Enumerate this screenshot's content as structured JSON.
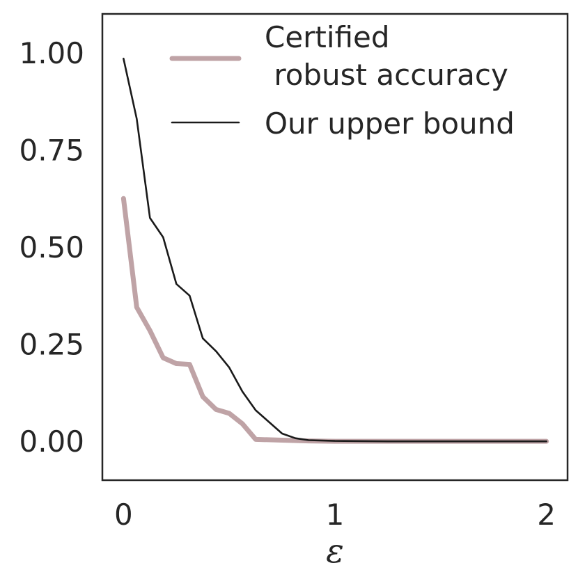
{
  "chart_data": {
    "type": "line",
    "xlabel": "ε",
    "ylabel": "",
    "xlim": [
      -0.1,
      2.1
    ],
    "ylim": [
      -0.1,
      1.1
    ],
    "x_ticks": [
      0,
      1,
      2
    ],
    "x_tick_labels": [
      "0",
      "1",
      "2"
    ],
    "y_ticks": [
      0.0,
      0.25,
      0.5,
      0.75,
      1.0
    ],
    "y_tick_labels": [
      "0.00",
      "0.25",
      "0.50",
      "0.75",
      "1.00"
    ],
    "grid": false,
    "legend_position": "top-right",
    "series": [
      {
        "name": "Certified\n robust accuracy",
        "color": "#bfa3a6",
        "x": [
          0,
          0.0625,
          0.125,
          0.1875,
          0.25,
          0.3125,
          0.375,
          0.4375,
          0.5,
          0.5625,
          0.625,
          0.75,
          0.875,
          1.0,
          1.25,
          1.5,
          1.75,
          2.0
        ],
        "y": [
          0.625,
          0.345,
          0.285,
          0.215,
          0.2,
          0.198,
          0.115,
          0.082,
          0.072,
          0.045,
          0.005,
          0.003,
          0.001,
          0.0,
          0.0,
          0.0,
          0.0,
          0.0
        ]
      },
      {
        "name": "Our upper bound",
        "color": "#1a1a1a",
        "x": [
          0,
          0.0625,
          0.125,
          0.1875,
          0.25,
          0.3125,
          0.375,
          0.4375,
          0.5,
          0.5625,
          0.625,
          0.75,
          0.8125,
          0.875,
          1.0,
          1.25,
          1.5,
          1.75,
          2.0
        ],
        "y": [
          0.985,
          0.83,
          0.575,
          0.525,
          0.405,
          0.375,
          0.265,
          0.232,
          0.19,
          0.128,
          0.08,
          0.02,
          0.008,
          0.003,
          0.001,
          0.0,
          0.0,
          0.0,
          0.0
        ]
      }
    ]
  }
}
